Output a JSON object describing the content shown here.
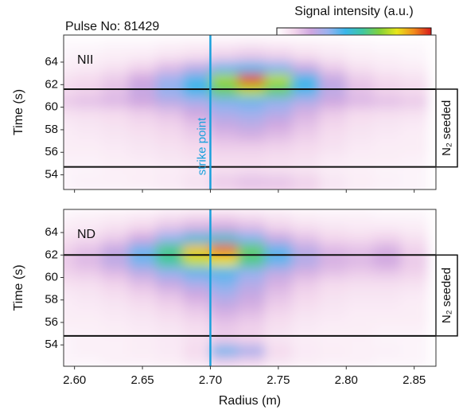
{
  "chart_data": [
    {
      "type": "heatmap",
      "title": "Pulse No: 81429",
      "colorbar_label": "Signal intensity (a.u.)",
      "panel_label": "NII",
      "zlim": [
        0,
        1
      ],
      "colormap": [
        "#ffffff",
        "#f3d6ec",
        "#cfa6e0",
        "#98b2ef",
        "#3ab6ea",
        "#3fc7a2",
        "#82d13a",
        "#e8e61a",
        "#f28a1c",
        "#d7191c"
      ],
      "ylabel": "Time (s)",
      "xlim": [
        2.592,
        2.866
      ],
      "ylim": [
        52.7,
        66.4
      ],
      "yticks": [
        54,
        56,
        58,
        60,
        62,
        64
      ],
      "strike_point": {
        "label": "strike point",
        "x": 2.7,
        "color": "#1aa0dc"
      },
      "seeded_window": {
        "label": "N₂ seeded",
        "times": [
          54.7,
          61.6
        ]
      },
      "x": [
        2.59,
        2.61,
        2.63,
        2.65,
        2.67,
        2.69,
        2.71,
        2.73,
        2.75,
        2.77,
        2.79,
        2.81,
        2.83,
        2.85
      ],
      "y": [
        52.5,
        53.5,
        54.5,
        55.5,
        56.5,
        57.5,
        58.5,
        59.5,
        60.5,
        61.5,
        62.5,
        63.5,
        64.5,
        65.5
      ],
      "z": [
        [
          0.03,
          0.03,
          0.03,
          0.03,
          0.04,
          0.06,
          0.1,
          0.12,
          0.12,
          0.1,
          0.06,
          0.04,
          0.03,
          0.03
        ],
        [
          0.03,
          0.04,
          0.04,
          0.05,
          0.06,
          0.08,
          0.14,
          0.16,
          0.15,
          0.12,
          0.07,
          0.05,
          0.04,
          0.03
        ],
        [
          0.03,
          0.03,
          0.04,
          0.04,
          0.05,
          0.06,
          0.08,
          0.09,
          0.08,
          0.07,
          0.05,
          0.04,
          0.03,
          0.03
        ],
        [
          0.04,
          0.04,
          0.05,
          0.06,
          0.07,
          0.08,
          0.1,
          0.1,
          0.09,
          0.08,
          0.06,
          0.05,
          0.05,
          0.04
        ],
        [
          0.05,
          0.05,
          0.06,
          0.07,
          0.08,
          0.1,
          0.13,
          0.13,
          0.12,
          0.1,
          0.08,
          0.06,
          0.05,
          0.05
        ],
        [
          0.05,
          0.06,
          0.07,
          0.08,
          0.1,
          0.13,
          0.18,
          0.2,
          0.17,
          0.13,
          0.09,
          0.07,
          0.06,
          0.05
        ],
        [
          0.06,
          0.07,
          0.08,
          0.1,
          0.12,
          0.16,
          0.24,
          0.26,
          0.22,
          0.16,
          0.11,
          0.08,
          0.07,
          0.06
        ],
        [
          0.08,
          0.09,
          0.1,
          0.13,
          0.16,
          0.22,
          0.3,
          0.32,
          0.28,
          0.2,
          0.14,
          0.1,
          0.09,
          0.08
        ],
        [
          0.14,
          0.16,
          0.18,
          0.22,
          0.26,
          0.3,
          0.36,
          0.38,
          0.34,
          0.28,
          0.22,
          0.18,
          0.16,
          0.14
        ],
        [
          0.1,
          0.12,
          0.16,
          0.24,
          0.34,
          0.44,
          0.62,
          0.72,
          0.6,
          0.42,
          0.26,
          0.16,
          0.12,
          0.1
        ],
        [
          0.08,
          0.1,
          0.14,
          0.22,
          0.32,
          0.42,
          0.7,
          0.95,
          0.72,
          0.44,
          0.24,
          0.14,
          0.1,
          0.08
        ],
        [
          0.05,
          0.06,
          0.08,
          0.12,
          0.18,
          0.26,
          0.38,
          0.42,
          0.36,
          0.24,
          0.14,
          0.08,
          0.06,
          0.05
        ],
        [
          0.03,
          0.04,
          0.05,
          0.06,
          0.08,
          0.1,
          0.14,
          0.16,
          0.14,
          0.1,
          0.07,
          0.05,
          0.04,
          0.03
        ],
        [
          0.02,
          0.02,
          0.03,
          0.03,
          0.04,
          0.05,
          0.06,
          0.07,
          0.06,
          0.05,
          0.04,
          0.03,
          0.02,
          0.02
        ]
      ]
    },
    {
      "type": "heatmap",
      "panel_label": "ND",
      "zlim": [
        0,
        1
      ],
      "ylabel": "Time (s)",
      "xlabel": "Radius (m)",
      "xlim": [
        2.592,
        2.866
      ],
      "ylim": [
        52.1,
        66.06
      ],
      "yticks": [
        54,
        56,
        58,
        60,
        62,
        64
      ],
      "xticks": [
        {
          "value": 2.6,
          "label": "2.60"
        },
        {
          "value": 2.65,
          "label": "2.65"
        },
        {
          "value": 2.7,
          "label": "2.70"
        },
        {
          "value": 2.75,
          "label": "2.75"
        },
        {
          "value": 2.8,
          "label": "2.80"
        },
        {
          "value": 2.85,
          "label": "2.85"
        }
      ],
      "strike_point": {
        "x": 2.7,
        "color": "#1aa0dc"
      },
      "seeded_window": {
        "label": "N₂ seeded",
        "times": [
          54.8,
          62.0
        ]
      },
      "x": [
        2.59,
        2.61,
        2.63,
        2.65,
        2.67,
        2.69,
        2.71,
        2.73,
        2.75,
        2.77,
        2.79,
        2.81,
        2.83,
        2.85
      ],
      "y": [
        52.5,
        53.5,
        54.5,
        55.5,
        56.5,
        57.5,
        58.5,
        59.5,
        60.5,
        61.5,
        62.5,
        63.5,
        64.5,
        65.5
      ],
      "z": [
        [
          0.03,
          0.03,
          0.04,
          0.04,
          0.05,
          0.07,
          0.14,
          0.12,
          0.07,
          0.05,
          0.04,
          0.04,
          0.03,
          0.03
        ],
        [
          0.03,
          0.04,
          0.04,
          0.05,
          0.06,
          0.1,
          0.38,
          0.3,
          0.1,
          0.06,
          0.05,
          0.04,
          0.04,
          0.03
        ],
        [
          0.03,
          0.04,
          0.04,
          0.05,
          0.06,
          0.08,
          0.14,
          0.12,
          0.07,
          0.05,
          0.04,
          0.04,
          0.03,
          0.03
        ],
        [
          0.04,
          0.04,
          0.05,
          0.06,
          0.07,
          0.09,
          0.14,
          0.12,
          0.08,
          0.06,
          0.05,
          0.05,
          0.04,
          0.04
        ],
        [
          0.05,
          0.05,
          0.06,
          0.07,
          0.09,
          0.12,
          0.18,
          0.15,
          0.1,
          0.07,
          0.06,
          0.05,
          0.05,
          0.05
        ],
        [
          0.05,
          0.06,
          0.07,
          0.09,
          0.12,
          0.16,
          0.24,
          0.2,
          0.13,
          0.09,
          0.07,
          0.06,
          0.06,
          0.05
        ],
        [
          0.06,
          0.07,
          0.09,
          0.12,
          0.16,
          0.22,
          0.3,
          0.24,
          0.16,
          0.11,
          0.08,
          0.07,
          0.07,
          0.06
        ],
        [
          0.08,
          0.09,
          0.12,
          0.17,
          0.24,
          0.3,
          0.36,
          0.28,
          0.2,
          0.14,
          0.1,
          0.09,
          0.09,
          0.08
        ],
        [
          0.12,
          0.14,
          0.18,
          0.26,
          0.34,
          0.4,
          0.42,
          0.34,
          0.26,
          0.2,
          0.16,
          0.14,
          0.15,
          0.12
        ],
        [
          0.14,
          0.18,
          0.26,
          0.38,
          0.56,
          0.74,
          0.78,
          0.58,
          0.4,
          0.28,
          0.2,
          0.18,
          0.22,
          0.14
        ],
        [
          0.12,
          0.16,
          0.24,
          0.38,
          0.58,
          0.82,
          0.92,
          0.62,
          0.4,
          0.26,
          0.18,
          0.16,
          0.2,
          0.12
        ],
        [
          0.08,
          0.1,
          0.14,
          0.22,
          0.34,
          0.46,
          0.48,
          0.36,
          0.24,
          0.16,
          0.11,
          0.1,
          0.12,
          0.08
        ],
        [
          0.05,
          0.06,
          0.08,
          0.11,
          0.16,
          0.2,
          0.22,
          0.18,
          0.12,
          0.09,
          0.07,
          0.06,
          0.06,
          0.05
        ],
        [
          0.03,
          0.04,
          0.05,
          0.06,
          0.08,
          0.1,
          0.11,
          0.09,
          0.07,
          0.05,
          0.04,
          0.04,
          0.03,
          0.03
        ]
      ]
    }
  ]
}
